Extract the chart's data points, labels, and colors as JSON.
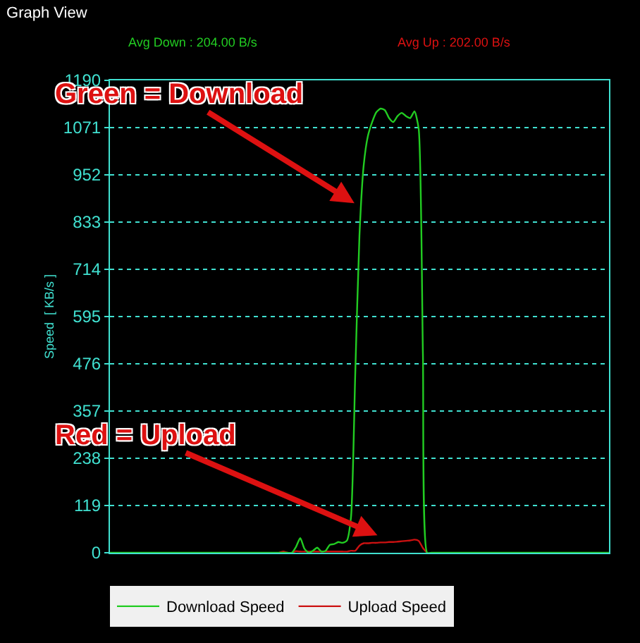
{
  "chart_data": {
    "type": "line",
    "title": "Graph View",
    "ylabel": "Speed  [ KB/s ]",
    "annotations": [
      "Avg Down : 204.00 B/s",
      "Avg Up : 202.00 B/s",
      "Green = Download",
      "Red = Upload"
    ],
    "categories": [
      null,
      null,
      null,
      null,
      null,
      null,
      null,
      null,
      null,
      null,
      null,
      null,
      null,
      null,
      null,
      null,
      null,
      null,
      null,
      null,
      null,
      null,
      null,
      null,
      null,
      null,
      null,
      null,
      null,
      null,
      null,
      null,
      null,
      null,
      null,
      null,
      null,
      null,
      null,
      null,
      null,
      null,
      null,
      null,
      null,
      null,
      null,
      null,
      null,
      null,
      null,
      null,
      null,
      null,
      null,
      null,
      null,
      null,
      null,
      null,
      null,
      null,
      null,
      null,
      null,
      null,
      null,
      null,
      null,
      null,
      null,
      null,
      null,
      null,
      null,
      null,
      null,
      null,
      null,
      null,
      null,
      null,
      null,
      null,
      null,
      null,
      null,
      null,
      null,
      null,
      null,
      null,
      null,
      null,
      null,
      null,
      null,
      null,
      null,
      null,
      null,
      null,
      null,
      null,
      null,
      null,
      null,
      null,
      null,
      null,
      null,
      null,
      null,
      null,
      null,
      null,
      null,
      null,
      null
    ],
    "series": [
      {
        "name": "Download Speed",
        "color": "#22cc22",
        "values": [
          0,
          0,
          0,
          0,
          0,
          0,
          0,
          0,
          0,
          0,
          0,
          0,
          0,
          0,
          0,
          0,
          0,
          0,
          0,
          0,
          0,
          0,
          0,
          0,
          0,
          0,
          0,
          0,
          0,
          0,
          0,
          0,
          0,
          0,
          0,
          0,
          0,
          0,
          0,
          0,
          0,
          0,
          0,
          0,
          15,
          37,
          10,
          0,
          5,
          13,
          3,
          5,
          20,
          22,
          27,
          25,
          30,
          90,
          450,
          800,
          976,
          1050,
          1085,
          1110,
          1119,
          1115,
          1095,
          1085,
          1100,
          1108,
          1100,
          1095,
          1112,
          1068,
          502,
          0,
          0,
          0,
          0,
          0,
          0,
          0,
          0,
          0,
          0,
          0,
          0,
          0,
          0,
          0,
          0,
          0,
          0,
          0,
          0,
          0,
          0,
          0,
          0,
          0,
          0,
          0,
          0,
          0,
          0,
          0,
          0,
          0,
          0,
          0,
          0,
          0,
          0,
          0,
          0,
          0,
          0,
          0,
          0
        ]
      },
      {
        "name": "Upload Speed",
        "color": "#cc1111",
        "values": [
          null,
          null,
          null,
          null,
          null,
          null,
          null,
          null,
          null,
          null,
          null,
          null,
          null,
          null,
          null,
          null,
          null,
          null,
          null,
          null,
          null,
          null,
          null,
          null,
          null,
          null,
          null,
          null,
          null,
          null,
          null,
          null,
          null,
          null,
          null,
          null,
          null,
          null,
          null,
          null,
          0,
          3,
          0,
          0,
          4,
          3,
          3,
          3,
          3,
          3,
          3,
          3,
          3,
          3,
          3,
          3,
          3,
          5,
          5,
          18,
          24,
          24,
          25,
          25,
          26,
          26,
          27,
          27,
          28,
          29,
          30,
          31,
          33,
          30,
          12,
          0,
          null,
          null,
          null,
          null,
          null,
          null,
          null,
          null,
          null,
          null,
          null,
          null,
          null,
          null,
          null,
          null,
          null,
          null,
          null,
          null,
          null,
          null,
          null,
          null,
          null,
          null,
          null,
          null,
          null,
          null,
          null,
          null,
          null,
          null,
          null,
          null,
          null,
          null,
          null,
          null,
          null,
          null,
          null
        ]
      }
    ],
    "ylim": [
      0,
      1190
    ],
    "yticks": [
      0,
      119,
      238,
      357,
      476,
      595,
      714,
      833,
      952,
      1071,
      1190
    ],
    "grid": "y",
    "legend": "bottom",
    "tick_labels": "y",
    "marker": "none",
    "line_style": "solid"
  }
}
